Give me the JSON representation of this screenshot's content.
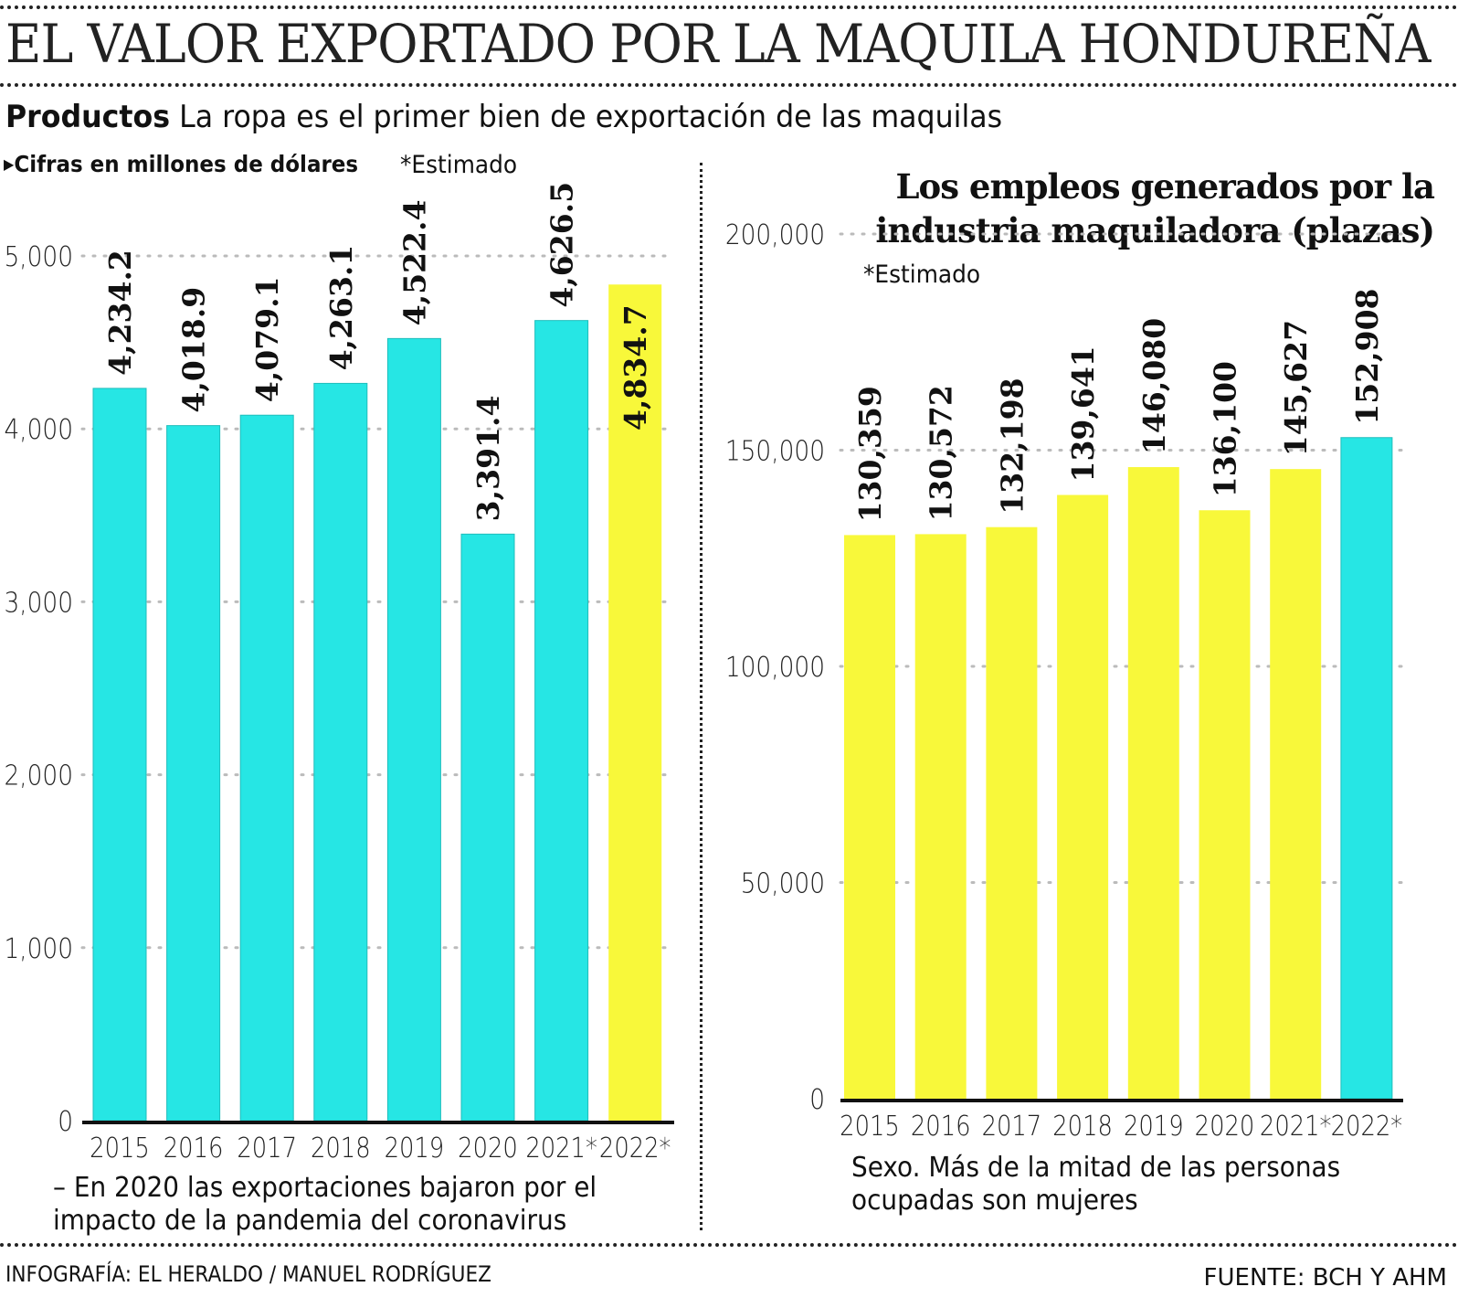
{
  "header": {
    "title": "EL VALOR EXPORTADO POR LA MAQUILA HONDUREÑA",
    "subtitle_bold": "Productos",
    "subtitle_rest": " La ropa es el primer bien de exportación de las maquilas",
    "units_note": "Cifras en millones de dólares",
    "units_icon": "triangle-right-icon",
    "estimado_note": "*Estimado"
  },
  "colors": {
    "cyan": "#26E6E4",
    "yellow": "#F8F83A",
    "axis": "#111111",
    "grid": "#BBBBBB"
  },
  "chart_data": [
    {
      "type": "bar",
      "title": "Productos: La ropa es el primer bien de exportación de las maquilas",
      "ylabel": "Cifras en millones de dólares",
      "xlabel": "",
      "categories": [
        "2015",
        "2016",
        "2017",
        "2018",
        "2019",
        "2020",
        "2021*",
        "2022*"
      ],
      "values": [
        4234.2,
        4018.9,
        4079.1,
        4263.1,
        4522.4,
        3391.4,
        4626.5,
        4834.7
      ],
      "value_labels": [
        "4,234.2",
        "4,018.9",
        "4,079.1",
        "4,263.1",
        "4,522.4",
        "3,391.4",
        "4,626.5",
        "4,834.7"
      ],
      "bar_colors": [
        "cyan",
        "cyan",
        "cyan",
        "cyan",
        "cyan",
        "cyan",
        "cyan",
        "yellow"
      ],
      "yticks": [
        0,
        1000,
        2000,
        3000,
        4000,
        5000
      ],
      "ytick_labels": [
        "0",
        "1,000",
        "2,000",
        "3,000",
        "4,000",
        "5,000"
      ],
      "ylim": [
        0,
        5000
      ],
      "grid": true,
      "note": "– En 2020 las exportaciones bajaron por el impacto de la pandemia del coronavirus",
      "note_lines": [
        "– En 2020 las exportaciones bajaron por el",
        "impacto de la pandemia del coronavirus"
      ]
    },
    {
      "type": "bar",
      "title": "Los empleos generados por la industria maquiladora (plazas)",
      "title_lines": [
        "Los empleos generados por la",
        "industria maquiladora (plazas)"
      ],
      "subtitle": "*Estimado",
      "xlabel": "",
      "ylabel": "",
      "categories": [
        "2015",
        "2016",
        "2017",
        "2018",
        "2019",
        "2020",
        "2021*",
        "2022*"
      ],
      "values": [
        130359,
        130572,
        132198,
        139641,
        146080,
        136100,
        145627,
        152908
      ],
      "value_labels": [
        "130,359",
        "130,572",
        "132,198",
        "139,641",
        "146,080",
        "136,100",
        "145,627",
        "152,908"
      ],
      "bar_colors": [
        "yellow",
        "yellow",
        "yellow",
        "yellow",
        "yellow",
        "yellow",
        "yellow",
        "cyan"
      ],
      "yticks": [
        0,
        50000,
        100000,
        150000,
        200000
      ],
      "ytick_labels": [
        "0",
        "50,000",
        "100,000",
        "150,000",
        "200,000"
      ],
      "ylim": [
        0,
        200000
      ],
      "grid": true,
      "note": "Sexo. Más de la mitad de las personas ocupadas son mujeres",
      "note_lines": [
        "Sexo. Más de la mitad de las personas",
        "ocupadas son mujeres"
      ]
    }
  ],
  "footer": {
    "credit": "INFOGRAFÍA: EL HERALDO / MANUEL RODRÍGUEZ",
    "source": "FUENTE: BCH Y AHM"
  }
}
